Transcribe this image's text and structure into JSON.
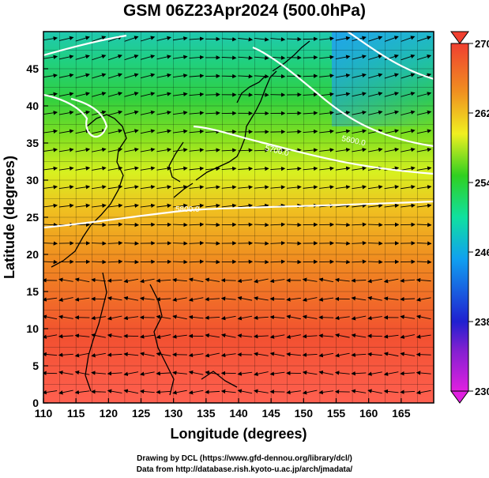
{
  "title": "GSM 06Z23Apr2024 (500.0hPa)",
  "x_axis": {
    "label": "Longitude (degrees)",
    "ticks": [
      "110",
      "115",
      "120",
      "125",
      "130",
      "135",
      "140",
      "145",
      "150",
      "155",
      "160",
      "165"
    ],
    "range": [
      110,
      170
    ]
  },
  "y_axis": {
    "label": "Latitude  (degrees)",
    "ticks": [
      "0",
      "5",
      "10",
      "15",
      "20",
      "25",
      "30",
      "35",
      "40",
      "45"
    ],
    "range": [
      0,
      50
    ]
  },
  "colorbar": {
    "ticks": [
      "230",
      "238",
      "246",
      "254",
      "262",
      "270"
    ],
    "range": [
      230,
      270
    ],
    "colors": [
      "#e020e0",
      "#2020d0",
      "#10a0f0",
      "#10e0a0",
      "#30d020",
      "#f0f020",
      "#f09020",
      "#f04030"
    ]
  },
  "contours": [
    {
      "label": "5700.0",
      "lat_at_145": 36.3
    },
    {
      "label": "5600.0",
      "lat_at_158": 36.5
    },
    {
      "label": "5800.0",
      "lat_at_131": 27.8
    }
  ],
  "credits": {
    "line1": "Drawing by DCL (https://www.gfd-dennou.org/library/dcl/)",
    "line2": "Data from http://database.rish.kyoto-u.ac.jp/arch/jmadata/"
  },
  "colors": {
    "contour": "#ffffff",
    "arrows": "#000000",
    "coast": "#000000"
  }
}
